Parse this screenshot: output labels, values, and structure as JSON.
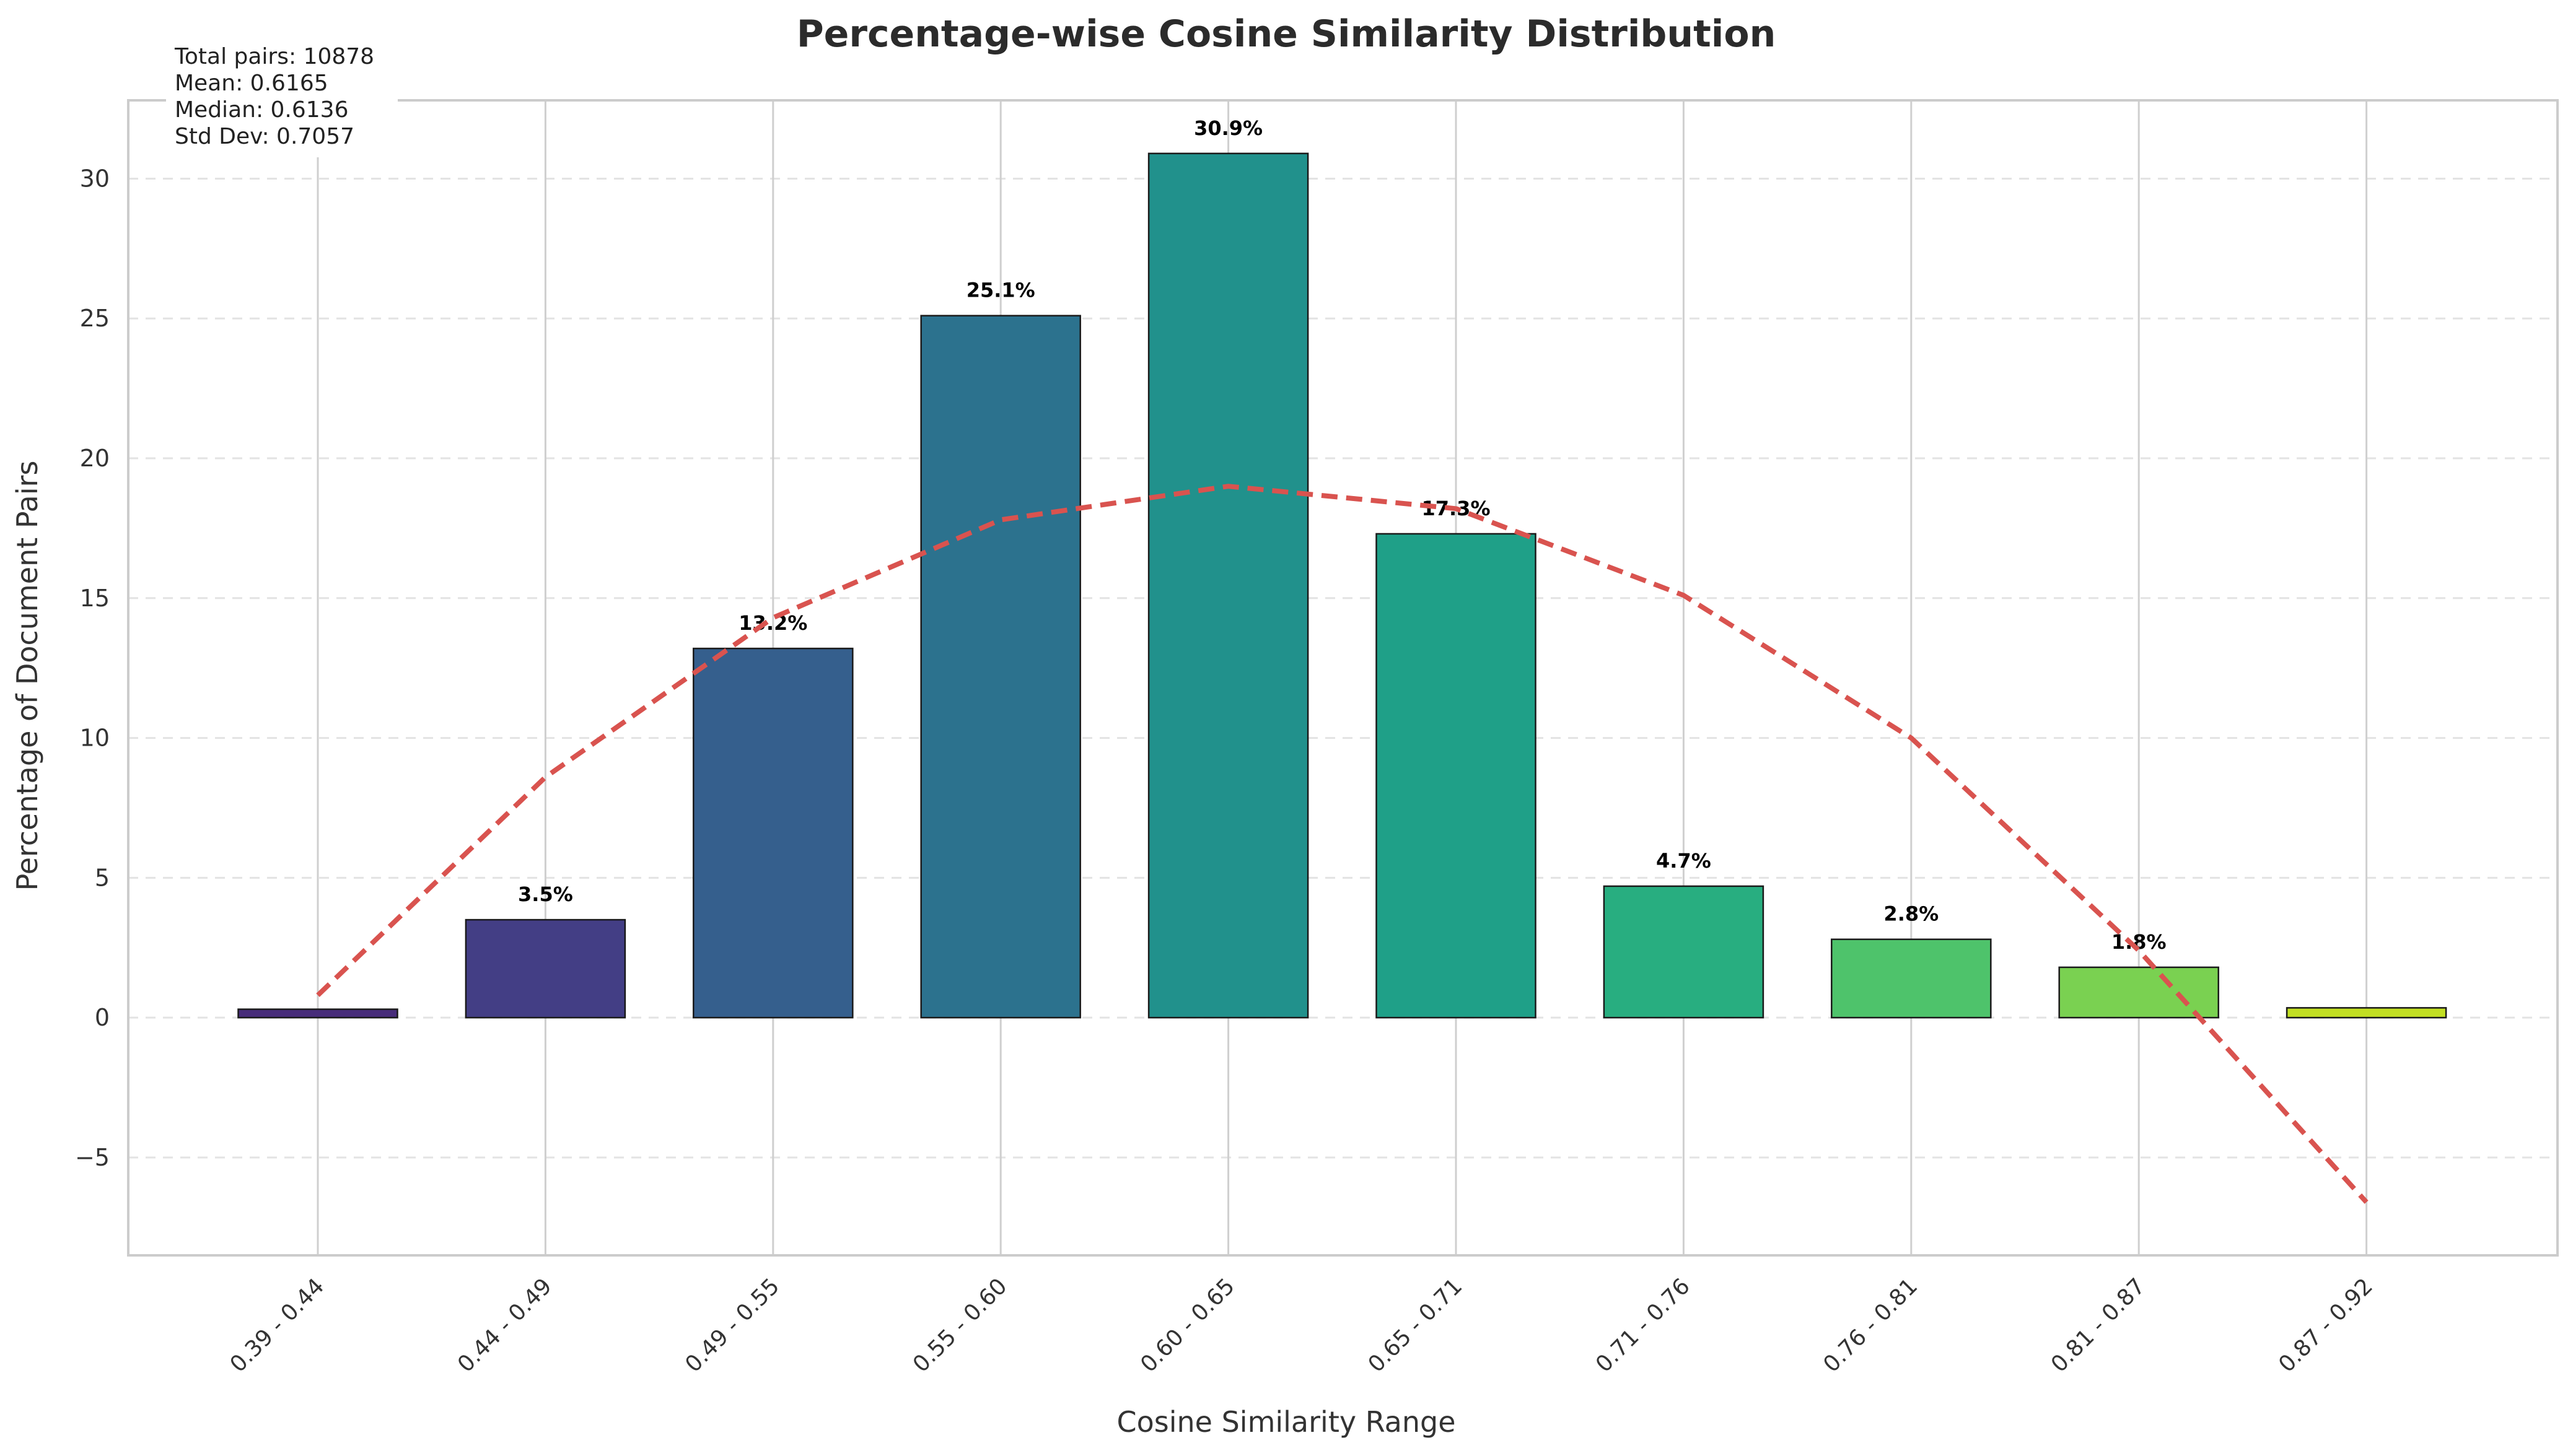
{
  "chart_data": {
    "type": "bar",
    "title": "Percentage-wise Cosine Similarity Distribution",
    "xlabel": "Cosine Similarity Range",
    "ylabel": "Percentage of Document Pairs",
    "categories": [
      "0.39 - 0.44",
      "0.44 - 0.49",
      "0.49 - 0.55",
      "0.55 - 0.60",
      "0.60 - 0.65",
      "0.65 - 0.71",
      "0.71 - 0.76",
      "0.76 - 0.81",
      "0.81 - 0.87",
      "0.87 - 0.92"
    ],
    "values": [
      0.3,
      3.5,
      13.2,
      25.1,
      30.9,
      17.3,
      4.7,
      2.8,
      1.8,
      0.35
    ],
    "bar_labels": [
      "",
      "3.5%",
      "13.2%",
      "25.1%",
      "30.9%",
      "17.3%",
      "4.7%",
      "2.8%",
      "1.8%",
      ""
    ],
    "bar_colors": [
      "#472c7a",
      "#433e85",
      "#355f8d",
      "#2c728e",
      "#21918c",
      "#1fa088",
      "#28ae80",
      "#4ec36b",
      "#7ad151",
      "#c2df23"
    ],
    "trend_line": {
      "style": "dashed",
      "color": "#d9534f",
      "values": [
        0.8,
        8.6,
        14.3,
        17.8,
        19.0,
        18.2,
        15.1,
        10.0,
        2.4,
        -6.6
      ]
    },
    "stats_box": [
      "Total pairs: 10878",
      "Mean: 0.6165",
      "Median: 0.6136",
      "Std Dev: 0.7057"
    ],
    "yticks": [
      -5,
      0,
      5,
      10,
      15,
      20,
      25,
      30
    ],
    "ytick_labels": [
      "−5",
      "0",
      "5",
      "10",
      "15",
      "20",
      "25",
      "30"
    ],
    "ylim": [
      -8.5,
      32.8
    ],
    "grid": true
  }
}
